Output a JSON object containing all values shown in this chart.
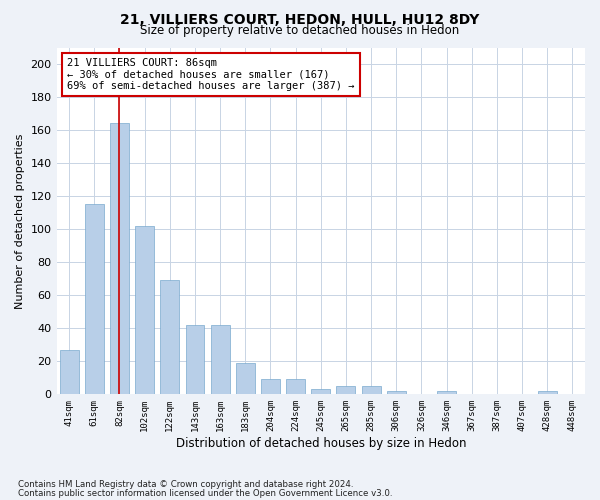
{
  "title_line1": "21, VILLIERS COURT, HEDON, HULL, HU12 8DY",
  "title_line2": "Size of property relative to detached houses in Hedon",
  "xlabel": "Distribution of detached houses by size in Hedon",
  "ylabel": "Number of detached properties",
  "categories": [
    "41sqm",
    "61sqm",
    "82sqm",
    "102sqm",
    "122sqm",
    "143sqm",
    "163sqm",
    "183sqm",
    "204sqm",
    "224sqm",
    "245sqm",
    "265sqm",
    "285sqm",
    "306sqm",
    "326sqm",
    "346sqm",
    "367sqm",
    "387sqm",
    "407sqm",
    "428sqm",
    "448sqm"
  ],
  "values": [
    27,
    115,
    164,
    102,
    69,
    42,
    42,
    19,
    9,
    9,
    3,
    5,
    5,
    2,
    0,
    2,
    0,
    0,
    0,
    2,
    0
  ],
  "bar_color": "#b8cfe8",
  "bar_edge_color": "#7aaace",
  "highlight_bar_index": 2,
  "highlight_line_color": "#cc0000",
  "ylim": [
    0,
    210
  ],
  "yticks": [
    0,
    20,
    40,
    60,
    80,
    100,
    120,
    140,
    160,
    180,
    200
  ],
  "annotation_text": "21 VILLIERS COURT: 86sqm\n← 30% of detached houses are smaller (167)\n69% of semi-detached houses are larger (387) →",
  "annotation_box_color": "#cc0000",
  "footer_line1": "Contains HM Land Registry data © Crown copyright and database right 2024.",
  "footer_line2": "Contains public sector information licensed under the Open Government Licence v3.0.",
  "bg_color": "#eef2f8",
  "plot_bg_color": "#ffffff",
  "grid_color": "#c8d4e4"
}
